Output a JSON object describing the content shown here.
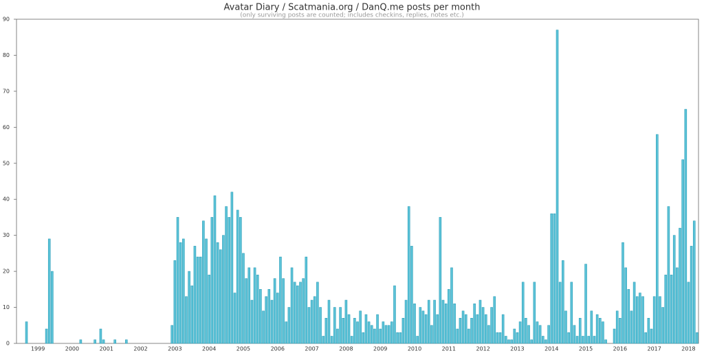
{
  "chart_data": {
    "type": "bar",
    "title": "Avatar Diary / Scatmania.org  / DanQ.me posts per month",
    "subtitle": "(only surviving posts are counted; includes checkins, replies, notes etc.)",
    "color": "#5cc3d8",
    "edge_color": "#2e9fb8",
    "ylim": [
      0,
      90
    ],
    "yticks": [
      0,
      10,
      20,
      30,
      40,
      50,
      60,
      70,
      80,
      90
    ],
    "categories": [
      null,
      null,
      null,
      null,
      null,
      null,
      null,
      "1999",
      null,
      null,
      null,
      null,
      null,
      null,
      null,
      null,
      null,
      null,
      null,
      "2000",
      null,
      null,
      null,
      null,
      null,
      null,
      null,
      null,
      null,
      null,
      null,
      "2001",
      null,
      null,
      null,
      null,
      null,
      null,
      null,
      null,
      null,
      null,
      null,
      "2002",
      null,
      null,
      null,
      null,
      null,
      null,
      null,
      null,
      null,
      null,
      null,
      "2003",
      null,
      null,
      null,
      null,
      null,
      null,
      null,
      null,
      null,
      null,
      null,
      "2004",
      null,
      null,
      null,
      null,
      null,
      null,
      null,
      null,
      null,
      null,
      null,
      "2005",
      null,
      null,
      null,
      null,
      null,
      null,
      null,
      null,
      null,
      null,
      null,
      "2006",
      null,
      null,
      null,
      null,
      null,
      null,
      null,
      null,
      null,
      null,
      null,
      "2007",
      null,
      null,
      null,
      null,
      null,
      null,
      null,
      null,
      null,
      null,
      null,
      "2008",
      null,
      null,
      null,
      null,
      null,
      null,
      null,
      null,
      null,
      null,
      null,
      "2009",
      null,
      null,
      null,
      null,
      null,
      null,
      null,
      null,
      null,
      null,
      null,
      "2010",
      null,
      null,
      null,
      null,
      null,
      null,
      null,
      null,
      null,
      null,
      null,
      "2011",
      null,
      null,
      null,
      null,
      null,
      null,
      null,
      null,
      null,
      null,
      null,
      "2012",
      null,
      null,
      null,
      null,
      null,
      null,
      null,
      null,
      null,
      null,
      null,
      "2013",
      null,
      null,
      null,
      null,
      null,
      null,
      null,
      null,
      null,
      null,
      null,
      "2014",
      null,
      null,
      null,
      null,
      null,
      null,
      null,
      null,
      null,
      null,
      null,
      "2015",
      null,
      null,
      null,
      null,
      null,
      null,
      null,
      null,
      null,
      null,
      null,
      "2016",
      null,
      null,
      null,
      null,
      null,
      null,
      null,
      null,
      null,
      null,
      null,
      "2017",
      null,
      null,
      null,
      null,
      null,
      null,
      null,
      null,
      null,
      null,
      null,
      "2018",
      null,
      null,
      null
    ],
    "values": [
      0,
      0,
      0,
      6,
      0,
      0,
      0,
      0,
      0,
      0,
      4,
      29,
      20,
      0,
      0,
      0,
      0,
      0,
      0,
      0,
      0,
      0,
      1,
      0,
      0,
      0,
      0,
      1,
      0,
      4,
      1,
      0,
      0,
      0,
      1,
      0,
      0,
      0,
      1,
      0,
      0,
      0,
      0,
      0,
      0,
      0,
      0,
      0,
      0,
      0,
      0,
      0,
      0,
      0,
      5,
      23,
      35,
      28,
      29,
      13,
      20,
      16,
      27,
      24,
      24,
      34,
      29,
      19,
      35,
      41,
      28,
      26,
      30,
      38,
      35,
      42,
      14,
      37,
      35,
      25,
      18,
      21,
      12,
      21,
      19,
      15,
      9,
      13,
      15,
      12,
      18,
      14,
      24,
      18,
      6,
      10,
      21,
      17,
      16,
      17,
      18,
      24,
      10,
      12,
      13,
      17,
      10,
      2,
      7,
      12,
      2,
      10,
      4,
      10,
      7,
      12,
      8,
      2,
      7,
      6,
      9,
      3,
      8,
      6,
      5,
      4,
      8,
      4,
      6,
      5,
      5,
      6,
      16,
      3,
      3,
      7,
      12,
      38,
      27,
      11,
      2,
      10,
      9,
      8,
      12,
      5,
      12,
      8,
      35,
      12,
      11,
      15,
      21,
      11,
      4,
      7,
      9,
      8,
      4,
      7,
      11,
      8,
      12,
      10,
      8,
      5,
      10,
      13,
      3,
      3,
      8,
      2,
      1,
      1,
      4,
      3,
      6,
      17,
      7,
      5,
      1,
      17,
      6,
      5,
      2,
      1,
      5,
      36,
      36,
      87,
      17,
      23,
      9,
      3,
      17,
      5,
      2,
      7,
      2,
      22,
      2,
      9,
      2,
      8,
      7,
      6,
      1,
      0,
      0,
      4,
      9,
      7,
      28,
      21,
      15,
      9,
      17,
      13,
      14,
      13,
      3,
      7,
      4,
      13,
      58,
      13,
      10,
      19,
      38,
      19,
      30,
      21,
      32,
      51,
      65,
      17,
      27,
      34,
      3
    ]
  }
}
